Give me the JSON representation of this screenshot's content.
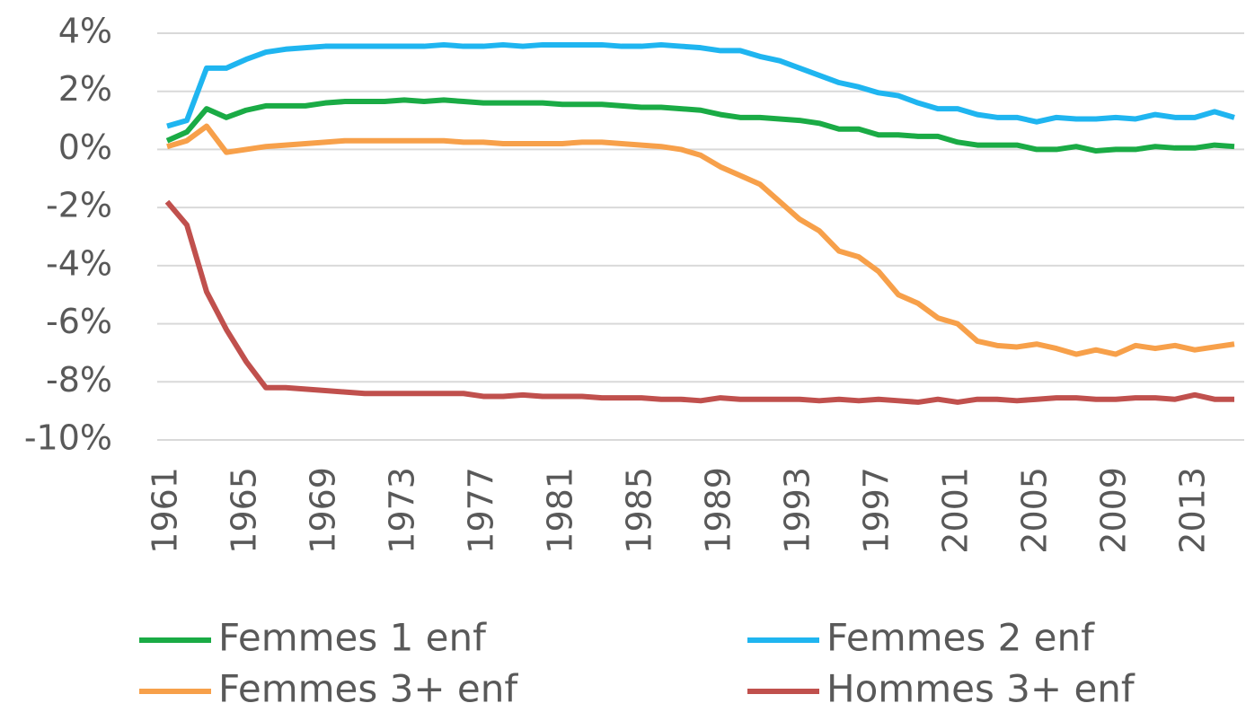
{
  "chart_data": {
    "type": "line",
    "x": [
      1961,
      1962,
      1963,
      1964,
      1965,
      1966,
      1967,
      1968,
      1969,
      1970,
      1971,
      1972,
      1973,
      1974,
      1975,
      1976,
      1977,
      1978,
      1979,
      1980,
      1981,
      1982,
      1983,
      1984,
      1985,
      1986,
      1987,
      1988,
      1989,
      1990,
      1991,
      1992,
      1993,
      1994,
      1995,
      1996,
      1997,
      1998,
      1999,
      2000,
      2001,
      2002,
      2003,
      2004,
      2005,
      2006,
      2007,
      2008,
      2009,
      2010,
      2011,
      2012,
      2013,
      2014,
      2015
    ],
    "series": [
      {
        "name": "Femmes 1 enf",
        "color": "#1aab45",
        "values": [
          0.3,
          0.6,
          1.4,
          1.1,
          1.35,
          1.5,
          1.5,
          1.5,
          1.6,
          1.65,
          1.65,
          1.65,
          1.7,
          1.65,
          1.7,
          1.65,
          1.6,
          1.6,
          1.6,
          1.6,
          1.55,
          1.55,
          1.55,
          1.5,
          1.45,
          1.45,
          1.4,
          1.35,
          1.2,
          1.1,
          1.1,
          1.05,
          1.0,
          0.9,
          0.7,
          0.7,
          0.5,
          0.5,
          0.45,
          0.45,
          0.25,
          0.15,
          0.15,
          0.15,
          0.0,
          0.0,
          0.1,
          -0.05,
          0.0,
          0.0,
          0.1,
          0.05,
          0.05,
          0.15,
          0.1
        ]
      },
      {
        "name": "Femmes 2 enf",
        "color": "#1fb5f0",
        "values": [
          0.8,
          1.0,
          2.8,
          2.8,
          3.1,
          3.35,
          3.45,
          3.5,
          3.55,
          3.55,
          3.55,
          3.55,
          3.55,
          3.55,
          3.6,
          3.55,
          3.55,
          3.6,
          3.55,
          3.6,
          3.6,
          3.6,
          3.6,
          3.55,
          3.55,
          3.6,
          3.55,
          3.5,
          3.4,
          3.4,
          3.2,
          3.05,
          2.8,
          2.55,
          2.3,
          2.15,
          1.95,
          1.85,
          1.6,
          1.4,
          1.4,
          1.2,
          1.1,
          1.1,
          0.95,
          1.1,
          1.05,
          1.05,
          1.1,
          1.05,
          1.2,
          1.1,
          1.1,
          1.3,
          1.1
        ]
      },
      {
        "name": "Femmes 3+ enf",
        "color": "#f7a04a",
        "values": [
          0.1,
          0.3,
          0.8,
          -0.1,
          0.0,
          0.1,
          0.15,
          0.2,
          0.25,
          0.3,
          0.3,
          0.3,
          0.3,
          0.3,
          0.3,
          0.25,
          0.25,
          0.2,
          0.2,
          0.2,
          0.2,
          0.25,
          0.25,
          0.2,
          0.15,
          0.1,
          0.0,
          -0.2,
          -0.6,
          -0.9,
          -1.2,
          -1.8,
          -2.4,
          -2.8,
          -3.5,
          -3.7,
          -4.2,
          -5.0,
          -5.3,
          -5.8,
          -6.0,
          -6.6,
          -6.75,
          -6.8,
          -6.7,
          -6.85,
          -7.05,
          -6.9,
          -7.05,
          -6.75,
          -6.85,
          -6.75,
          -6.9,
          -6.8,
          -6.7
        ]
      },
      {
        "name": "Hommes 3+ enf",
        "color": "#c0504d",
        "values": [
          -1.8,
          -2.6,
          -4.9,
          -6.2,
          -7.3,
          -8.2,
          -8.2,
          -8.25,
          -8.3,
          -8.35,
          -8.4,
          -8.4,
          -8.4,
          -8.4,
          -8.4,
          -8.4,
          -8.5,
          -8.5,
          -8.45,
          -8.5,
          -8.5,
          -8.5,
          -8.55,
          -8.55,
          -8.55,
          -8.6,
          -8.6,
          -8.65,
          -8.55,
          -8.6,
          -8.6,
          -8.6,
          -8.6,
          -8.65,
          -8.6,
          -8.65,
          -8.6,
          -8.65,
          -8.7,
          -8.6,
          -8.7,
          -8.6,
          -8.6,
          -8.65,
          -8.6,
          -8.55,
          -8.55,
          -8.6,
          -8.6,
          -8.55,
          -8.55,
          -8.6,
          -8.45,
          -8.6,
          -8.6
        ]
      }
    ],
    "xlim": [
      1960.5,
      2015.5
    ],
    "xticks": [
      1961,
      1965,
      1969,
      1973,
      1977,
      1981,
      1985,
      1989,
      1993,
      1997,
      2001,
      2005,
      2009,
      2013
    ],
    "ylim": [
      -10,
      4
    ],
    "yticks": [
      {
        "value": -10,
        "label": "-10%"
      },
      {
        "value": -8,
        "label": "-8%"
      },
      {
        "value": -6,
        "label": "-6%"
      },
      {
        "value": -4,
        "label": "-4%"
      },
      {
        "value": -2,
        "label": "-2%"
      },
      {
        "value": 0,
        "label": "0%"
      },
      {
        "value": 2,
        "label": "2%"
      },
      {
        "value": 4,
        "label": "4%"
      }
    ],
    "grid": true,
    "legend": "bottom"
  }
}
